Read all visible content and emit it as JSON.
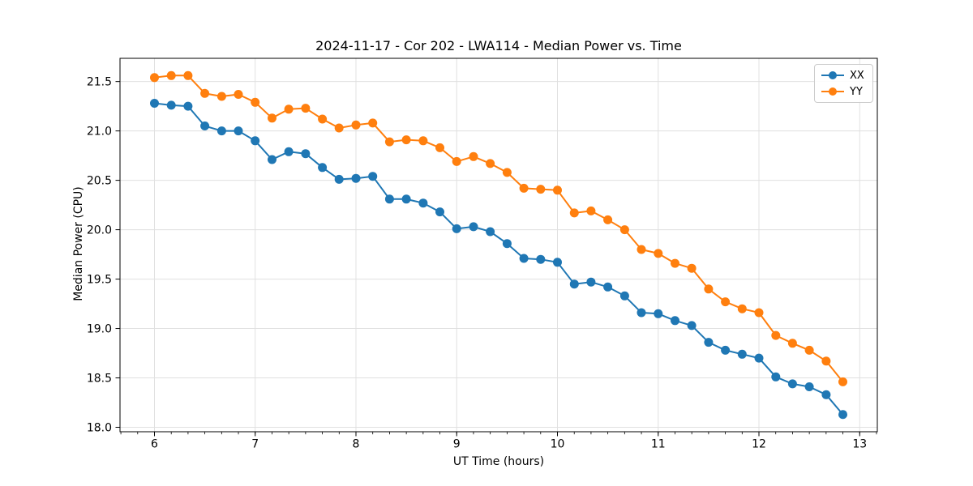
{
  "figure": {
    "title": "2024-11-17 - Cor 202 - LWA114 - Median Power vs. Time",
    "background": "#ffffff"
  },
  "chart_data": {
    "type": "line",
    "title": "2024-11-17 - Cor 202 - LWA114 - Median Power vs. Time",
    "xlabel": "UT Time (hours)",
    "ylabel": "Median Power (CPU)",
    "xlim": [
      5.658,
      13.175
    ],
    "ylim": [
      17.955,
      21.735
    ],
    "xticks": [
      6,
      7,
      8,
      9,
      10,
      11,
      12,
      13
    ],
    "yticks": [
      18.0,
      18.5,
      19.0,
      19.5,
      20.0,
      20.5,
      21.0,
      21.5
    ],
    "x_minor_step": 0.166667,
    "grid": true,
    "grid_color": "#e0e0e0",
    "spine_color": "#000000",
    "legend_position": "upper right",
    "marker": "circle",
    "x": [
      6.0,
      6.167,
      6.333,
      6.5,
      6.667,
      6.833,
      7.0,
      7.167,
      7.333,
      7.5,
      7.667,
      7.833,
      8.0,
      8.167,
      8.333,
      8.5,
      8.667,
      8.833,
      9.0,
      9.167,
      9.333,
      9.5,
      9.667,
      9.833,
      10.0,
      10.167,
      10.333,
      10.5,
      10.667,
      10.833,
      11.0,
      11.167,
      11.333,
      11.5,
      11.667,
      11.833,
      12.0,
      12.167,
      12.333,
      12.5,
      12.667,
      12.833
    ],
    "series": [
      {
        "name": "XX",
        "color": "#1f77b4",
        "values": [
          21.28,
          21.26,
          21.25,
          21.05,
          21.0,
          21.0,
          20.9,
          20.71,
          20.79,
          20.77,
          20.63,
          20.51,
          20.52,
          20.54,
          20.31,
          20.31,
          20.27,
          20.18,
          20.01,
          20.03,
          19.98,
          19.86,
          19.71,
          19.7,
          19.67,
          19.45,
          19.47,
          19.42,
          19.33,
          19.16,
          19.15,
          19.08,
          19.03,
          18.86,
          18.78,
          18.74,
          18.7,
          18.51,
          18.44,
          18.41,
          18.33,
          18.13
        ]
      },
      {
        "name": "YY",
        "color": "#ff7f0e",
        "values": [
          21.54,
          21.56,
          21.56,
          21.38,
          21.35,
          21.37,
          21.29,
          21.13,
          21.22,
          21.23,
          21.12,
          21.03,
          21.06,
          21.08,
          20.89,
          20.91,
          20.9,
          20.83,
          20.69,
          20.74,
          20.67,
          20.58,
          20.42,
          20.41,
          20.4,
          20.17,
          20.19,
          20.1,
          20.0,
          19.8,
          19.76,
          19.66,
          19.61,
          19.4,
          19.27,
          19.2,
          19.16,
          18.93,
          18.85,
          18.78,
          18.67,
          18.46
        ]
      }
    ]
  }
}
